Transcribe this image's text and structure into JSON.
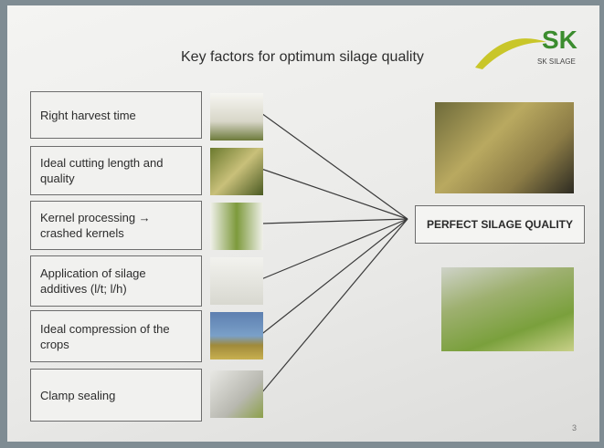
{
  "title": "Key factors for optimum silage quality",
  "logo": {
    "mark": "SK",
    "name": "SK SILAGE"
  },
  "factors": [
    "Right harvest time",
    "Ideal cutting length and quality",
    "Kernel processing → crashed kernels",
    "Application of silage additives (l/t; l/h)",
    "Ideal compression of the crops",
    "Clamp sealing"
  ],
  "result": "PERFECT SILAGE QUALITY",
  "page_number": "3"
}
